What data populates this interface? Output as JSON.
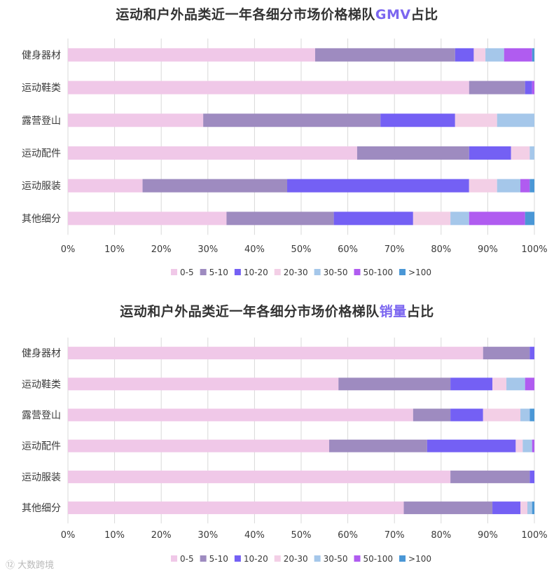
{
  "colors": {
    "0-5": "#f0c8e8",
    "5-10": "#9e8bc0",
    "10-20": "#7460f4",
    "20-30": "#f3cfe6",
    "30-50": "#a5c7ea",
    "50-100": "#b05cf0",
    ">100": "#4a97d6",
    "title_highlight": "#7b66f0"
  },
  "watermark": "⑫ 大数跨境",
  "chart_data": [
    {
      "type": "bar",
      "orientation": "horizontal-stacked-100",
      "title_prefix": "运动和户外品类近一年各细分市场价格梯队",
      "title_highlight": "GMV",
      "title_suffix": "占比",
      "categories": [
        "健身器材",
        "运动鞋类",
        "露营登山",
        "运动配件",
        "运动服装",
        "其他细分"
      ],
      "xlim": [
        0,
        100
      ],
      "x_ticks": [
        "0%",
        "10%",
        "20%",
        "30%",
        "40%",
        "50%",
        "60%",
        "70%",
        "80%",
        "90%",
        "100%"
      ],
      "grid": true,
      "legend_position": "bottom",
      "series": [
        {
          "name": "0-5",
          "values": [
            53,
            86,
            29,
            62,
            16,
            34
          ]
        },
        {
          "name": "5-10",
          "values": [
            30,
            12,
            38,
            24,
            31,
            23
          ]
        },
        {
          "name": "10-20",
          "values": [
            4,
            1.5,
            16,
            9,
            39,
            17
          ]
        },
        {
          "name": "20-30",
          "values": [
            2.5,
            0,
            9,
            4,
            6,
            8
          ]
        },
        {
          "name": "30-50",
          "values": [
            4,
            0,
            8,
            1,
            5,
            4
          ]
        },
        {
          "name": "50-100",
          "values": [
            6,
            0.5,
            0,
            0,
            2,
            12
          ]
        },
        {
          "name": ">100",
          "values": [
            0.5,
            0,
            0,
            0,
            1,
            2
          ]
        }
      ]
    },
    {
      "type": "bar",
      "orientation": "horizontal-stacked-100",
      "title_prefix": "运动和户外品类近一年各细分市场价格梯队",
      "title_highlight": "销量",
      "title_suffix": "占比",
      "categories": [
        "健身器材",
        "运动鞋类",
        "露营登山",
        "运动配件",
        "运动服装",
        "其他细分"
      ],
      "xlim": [
        0,
        100
      ],
      "x_ticks": [
        "0%",
        "10%",
        "20%",
        "30%",
        "40%",
        "50%",
        "60%",
        "70%",
        "80%",
        "90%",
        "100%"
      ],
      "grid": true,
      "legend_position": "bottom",
      "series": [
        {
          "name": "0-5",
          "values": [
            89,
            58,
            74,
            56,
            82,
            72
          ]
        },
        {
          "name": "5-10",
          "values": [
            10,
            24,
            8,
            21,
            17,
            19
          ]
        },
        {
          "name": "10-20",
          "values": [
            1,
            9,
            7,
            19,
            1,
            6
          ]
        },
        {
          "name": "20-30",
          "values": [
            0,
            3,
            8,
            1.5,
            0,
            1.5
          ]
        },
        {
          "name": "30-50",
          "values": [
            0,
            4,
            2,
            2,
            0,
            1
          ]
        },
        {
          "name": "50-100",
          "values": [
            0,
            2,
            0,
            0.5,
            0,
            0
          ]
        },
        {
          "name": ">100",
          "values": [
            0,
            0,
            1,
            0,
            0,
            0.5
          ]
        }
      ]
    }
  ]
}
